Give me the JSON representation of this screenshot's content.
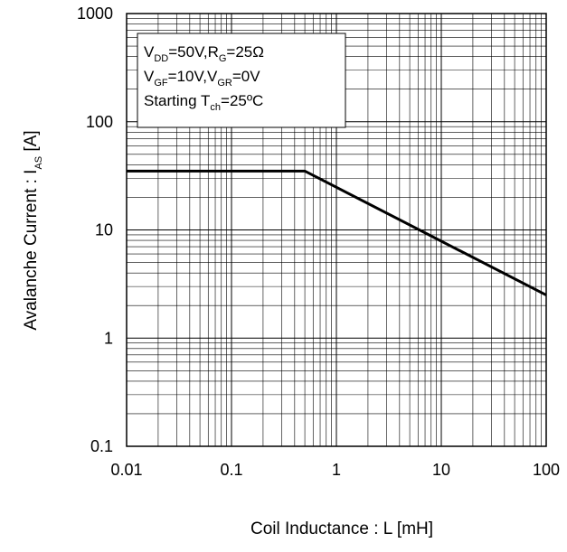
{
  "chart_data": {
    "type": "line",
    "x_scale": "log",
    "y_scale": "log",
    "xlim": [
      0.01,
      100
    ],
    "ylim": [
      0.1,
      1000
    ],
    "grid": true,
    "xlabel": "Coil Inductance : L [mH]",
    "ylabel": {
      "main": "Avalanche Current : I",
      "sub": "AS",
      "tail": " [A]"
    },
    "x_ticks": [
      {
        "value": 0.01,
        "label": "0.01"
      },
      {
        "value": 0.1,
        "label": "0.1"
      },
      {
        "value": 1,
        "label": "1"
      },
      {
        "value": 10,
        "label": "10"
      },
      {
        "value": 100,
        "label": "100"
      }
    ],
    "y_ticks": [
      {
        "value": 0.1,
        "label": "0.1"
      },
      {
        "value": 1,
        "label": "1"
      },
      {
        "value": 10,
        "label": "10"
      },
      {
        "value": 100,
        "label": "100"
      },
      {
        "value": 1000,
        "label": "1000"
      }
    ],
    "series": [
      {
        "color": "#000000",
        "points": [
          {
            "x": 0.01,
            "y": 35
          },
          {
            "x": 0.5,
            "y": 35
          },
          {
            "x": 100,
            "y": 2.5
          }
        ]
      }
    ],
    "annotation": {
      "placement": "top-left",
      "lines": [
        [
          {
            "t": "V"
          },
          {
            "t": "DD",
            "sub": true
          },
          {
            "t": "=50V,R"
          },
          {
            "t": "G",
            "sub": true
          },
          {
            "t": "=25Ω"
          }
        ],
        [
          {
            "t": "V"
          },
          {
            "t": "GF",
            "sub": true
          },
          {
            "t": "=10V,V"
          },
          {
            "t": "GR",
            "sub": true
          },
          {
            "t": "=0V"
          }
        ],
        [
          {
            "t": "Starting T"
          },
          {
            "t": "ch",
            "sub": true
          },
          {
            "t": "=25ºC"
          }
        ]
      ]
    }
  }
}
